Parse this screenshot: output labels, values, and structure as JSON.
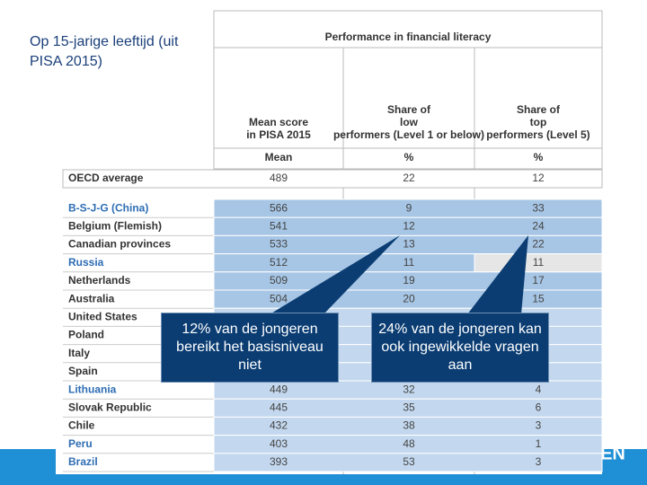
{
  "title": "Op 15-jarige leeftijd (uit PISA 2015)",
  "table": {
    "group_header": "Performance in financial literacy",
    "columns": [
      "Mean score in PISA 2015",
      "Share of low performers (Level 1 or below)",
      "Share of top performers (Level 5)"
    ],
    "units": [
      "Mean",
      "%",
      "%"
    ],
    "average": {
      "country": "OECD average",
      "mean": 489,
      "low": 22,
      "top": 12
    },
    "rows": [
      {
        "country": "B-S-J-G (China)",
        "partner": true,
        "mean": 566,
        "low": 9,
        "top": 33
      },
      {
        "country": "Belgium (Flemish)",
        "mean": 541,
        "low": 12,
        "top": 24
      },
      {
        "country": "Canadian provinces",
        "mean": 533,
        "low": 13,
        "top": 22
      },
      {
        "country": "Russia",
        "partner": true,
        "mean": 512,
        "low": 11,
        "top": 11
      },
      {
        "country": "Netherlands",
        "mean": 509,
        "low": 19,
        "top": 17
      },
      {
        "country": "Australia",
        "mean": 504,
        "low": 20,
        "top": 15
      },
      {
        "country": "United States"
      },
      {
        "country": "Poland"
      },
      {
        "country": "Italy"
      },
      {
        "country": "Spain"
      },
      {
        "country": "Lithuania",
        "partner": true,
        "mean": 449,
        "low": 32,
        "top": 4
      },
      {
        "country": "Slovak Republic",
        "mean": 445,
        "low": 35,
        "top": 6
      },
      {
        "country": "Chile",
        "mean": 432,
        "low": 38,
        "top": 3
      },
      {
        "country": "Peru",
        "partner": true,
        "mean": 403,
        "low": 48,
        "top": 1
      },
      {
        "country": "Brazil",
        "partner": true,
        "mean": 393,
        "low": 53,
        "top": 3
      }
    ]
  },
  "callouts": [
    "12% van de jongeren bereikt het basisniveau niet",
    "24% van de jongeren kan ook ingewikkelde vragen aan"
  ],
  "logo": "EN"
}
